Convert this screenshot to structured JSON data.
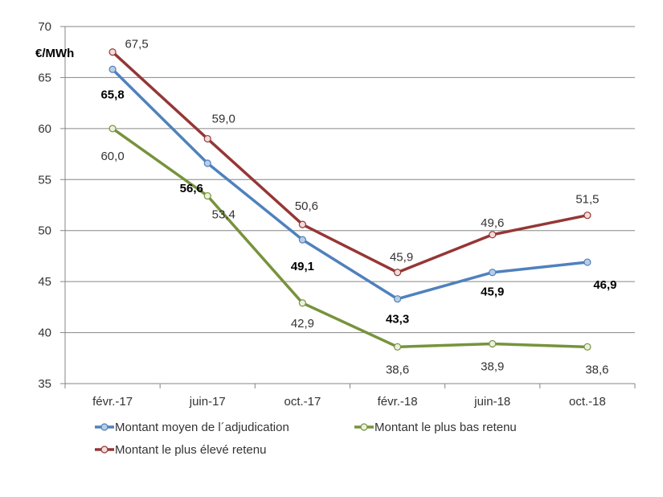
{
  "chart_data": {
    "type": "line",
    "unit_label": "€/MWh",
    "categories": [
      "févr.-17",
      "juin-17",
      "oct.-17",
      "févr.-18",
      "juin-18",
      "oct.-18"
    ],
    "ylim": [
      35,
      70
    ],
    "yticks": [
      "35",
      "40",
      "45",
      "50",
      "55",
      "60",
      "65",
      "70"
    ],
    "grid": true,
    "legend_position": "bottom",
    "series": [
      {
        "name": "Montant moyen de l´adjudication",
        "color": "#4F81BD",
        "marker_fill": "#B9CDE5",
        "values": [
          65.8,
          56.6,
          49.1,
          43.3,
          45.9,
          46.9
        ],
        "labels": [
          "65,8",
          "56,6",
          "49,1",
          "43,3",
          "45,9",
          "46,9"
        ],
        "label_bold": true
      },
      {
        "name": "Montant le plus bas retenu",
        "color": "#77933C",
        "marker_fill": "#EBF1DE",
        "values": [
          60.0,
          53.4,
          42.9,
          38.6,
          38.9,
          38.6
        ],
        "labels": [
          "60,0",
          "53,4",
          "42,9",
          "38,6",
          "38,9",
          "38,6"
        ],
        "label_bold": false
      },
      {
        "name": "Montant le plus élevé retenu",
        "color": "#953735",
        "marker_fill": "#F2DCDB",
        "values": [
          67.5,
          59.0,
          50.6,
          45.9,
          49.6,
          51.5
        ],
        "labels": [
          "67,5",
          "59,0",
          "50,6",
          "45,9",
          "49,6",
          "51,5"
        ],
        "label_bold": false
      }
    ]
  }
}
